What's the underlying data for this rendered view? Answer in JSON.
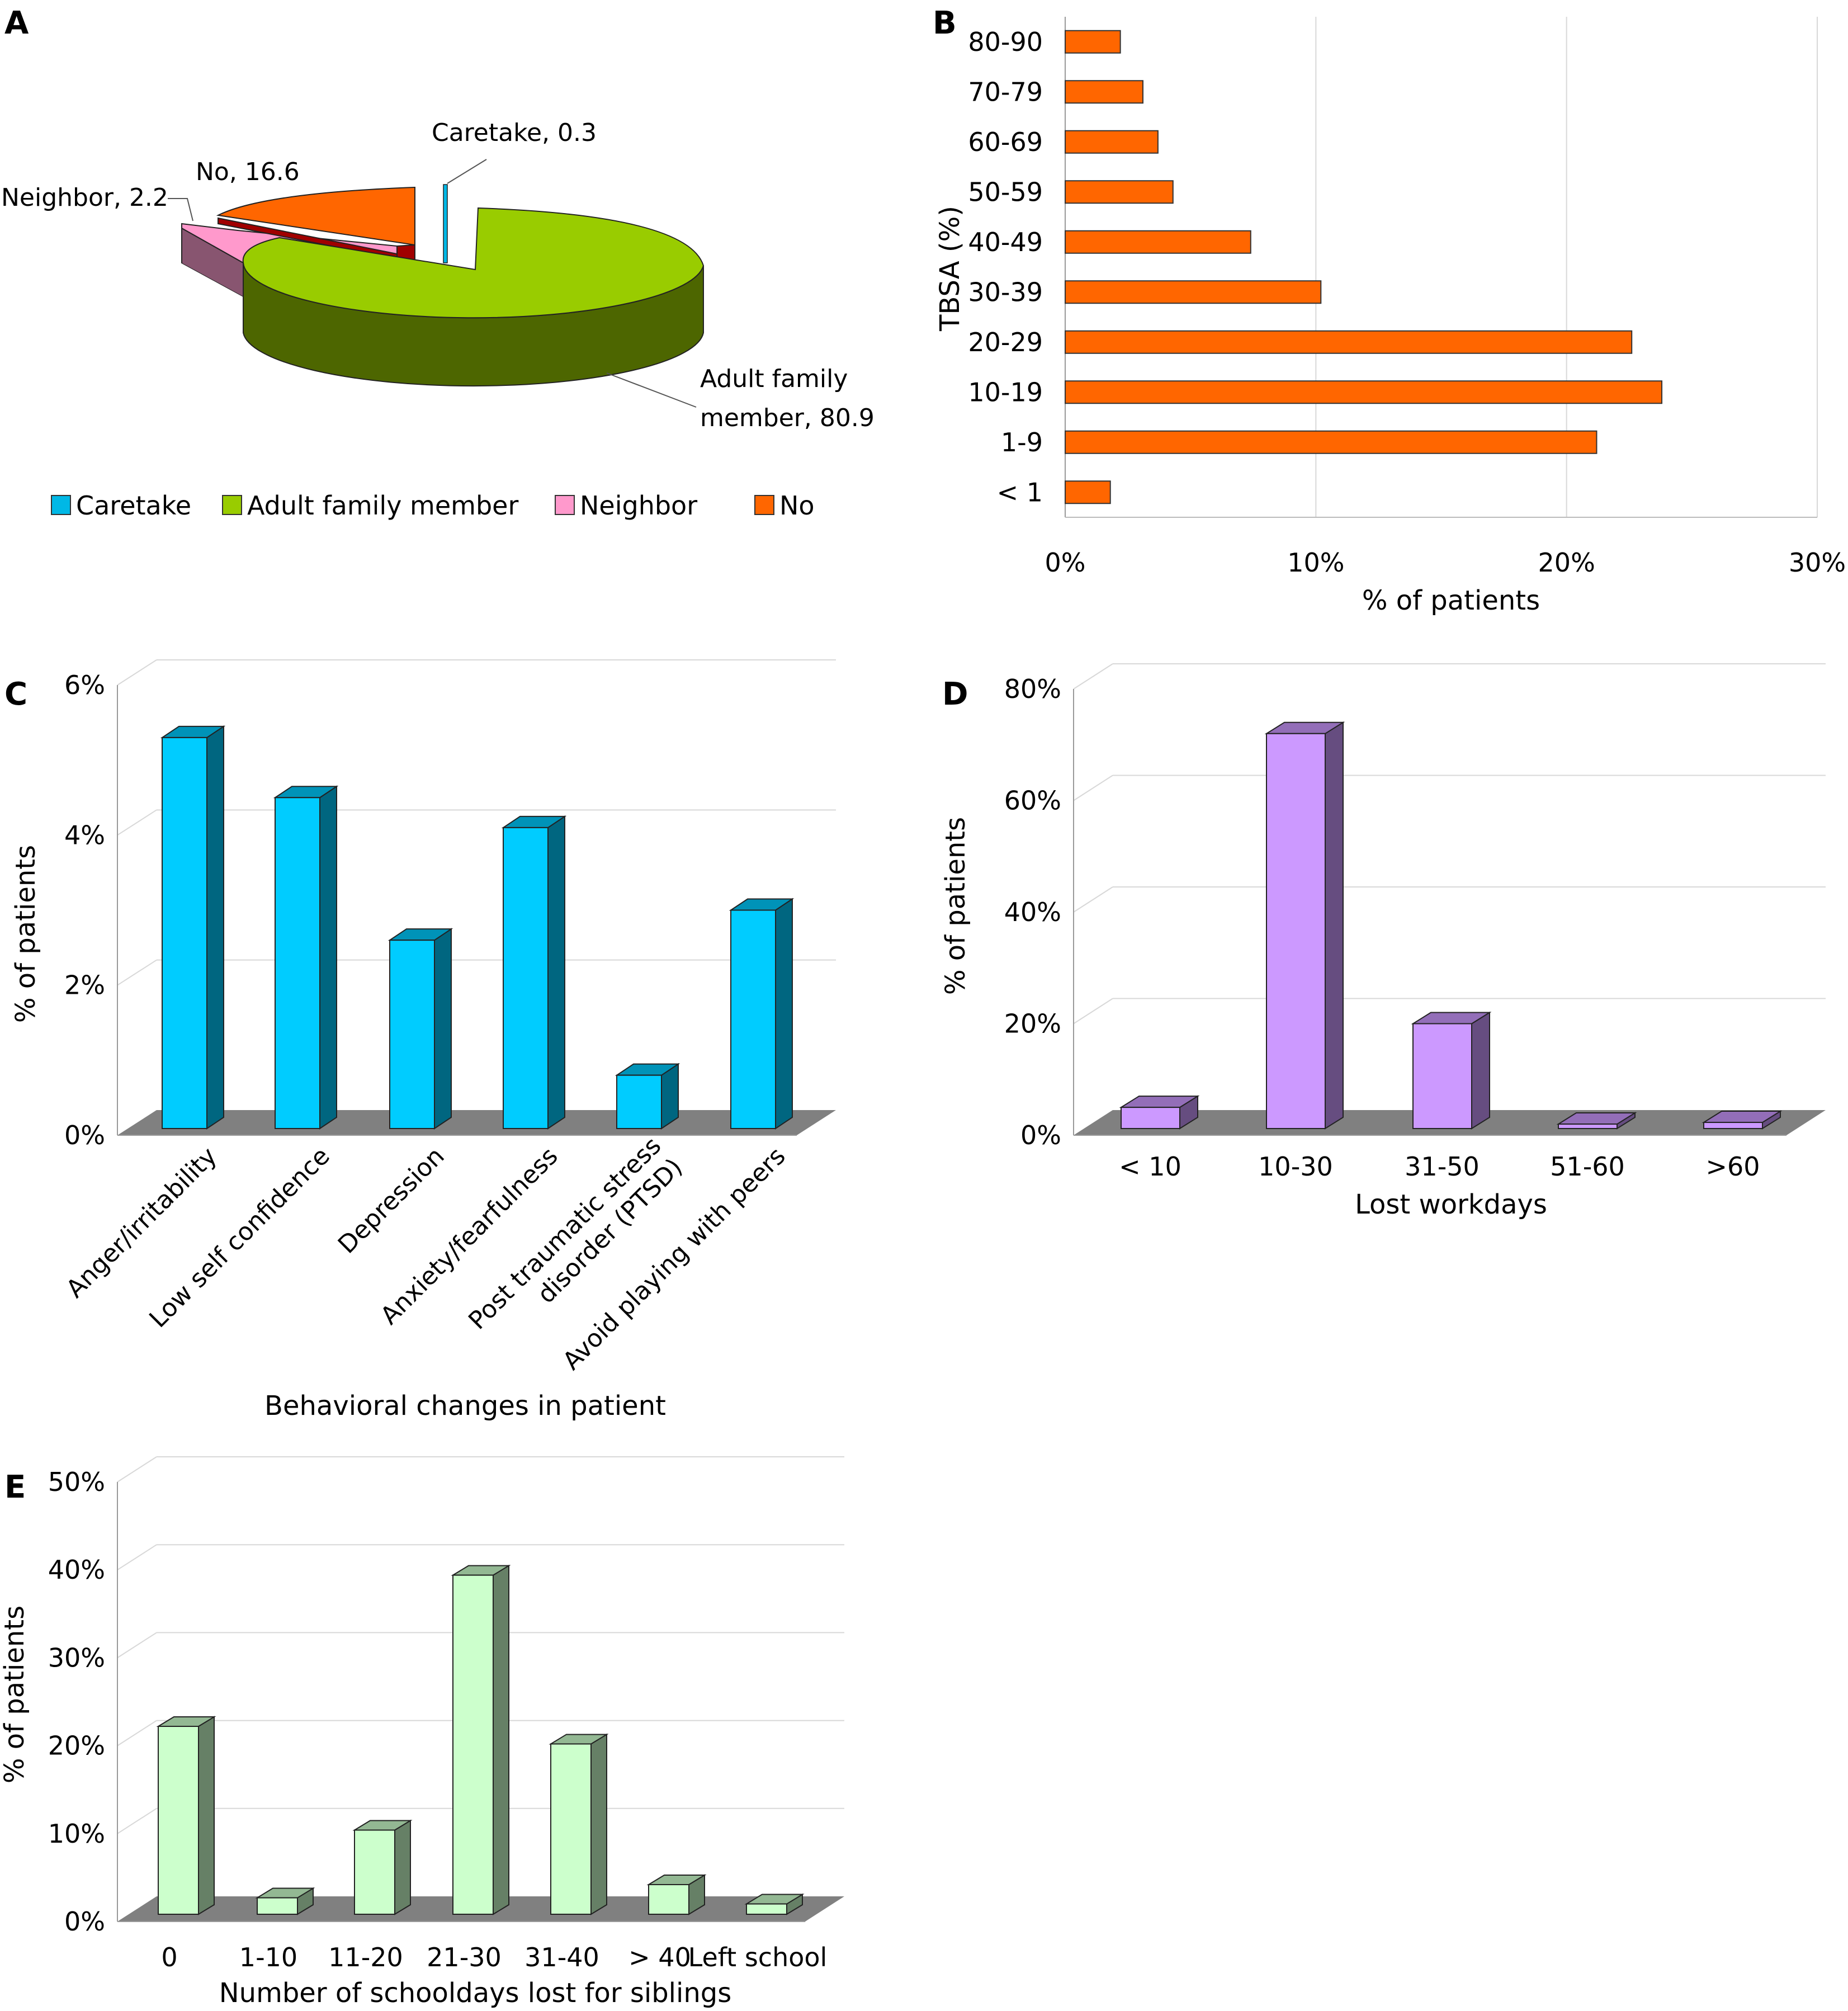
{
  "chart_data": [
    {
      "panel": "A",
      "type": "pie",
      "title": "",
      "slices": [
        {
          "label": "Caretake",
          "value": 0.3,
          "data_label": "Caretake, 0.3",
          "color": "#00b8e6",
          "side": "#0088aa"
        },
        {
          "label": "Adult family member",
          "value": 80.9,
          "data_label": "Adult family member, 80.9",
          "color": "#99cc00",
          "side": "#4d6600"
        },
        {
          "label": "Neighbor",
          "value": 2.2,
          "data_label": "Neighbor, 2.2",
          "color": "#ff99cc",
          "side": "#885570"
        },
        {
          "label": "No",
          "value": 16.6,
          "data_label": "No, 16.6",
          "color": "#ff6600",
          "side": "#a00000"
        }
      ],
      "legend": [
        "Caretake",
        "Adult family member",
        "Neighbor",
        "No"
      ],
      "legend_position": "bottom"
    },
    {
      "panel": "B",
      "type": "bar",
      "orientation": "horizontal",
      "categories": [
        "< 1",
        "1-9",
        "10-19",
        "20-29",
        "30-39",
        "40-49",
        "50-59",
        "60-69",
        "70-79",
        "80-90"
      ],
      "values": [
        1.8,
        21.2,
        23.8,
        22.6,
        10.2,
        7.4,
        4.3,
        3.7,
        3.1,
        2.2
      ],
      "xlabel": "% of patients",
      "ylabel": "TBSA (%)",
      "xlim": [
        0,
        30
      ],
      "xticks": [
        "0%",
        "10%",
        "20%",
        "30%"
      ],
      "grid": true,
      "color": "#ff6600"
    },
    {
      "panel": "C",
      "type": "bar",
      "categories": [
        "Anger/irritability",
        "Low self confidence",
        "Depression",
        "Anxiety/fearfulness",
        "Post traumatic stress disorder (PTSD)",
        "Avoid playing with peers"
      ],
      "category_lines": [
        [
          "Anger/irritability"
        ],
        [
          "Low self confidence"
        ],
        [
          "Depression"
        ],
        [
          "Anxiety/fearfulness"
        ],
        [
          "Post traumatic stress",
          "disorder (PTSD)"
        ],
        [
          "Avoid playing with peers"
        ]
      ],
      "values": [
        5.3,
        4.5,
        2.6,
        4.1,
        0.8,
        3.0
      ],
      "xlabel": "Behavioral changes in patient",
      "ylabel": "% of patients",
      "ylim": [
        0,
        6
      ],
      "yticks": [
        "0%",
        "2%",
        "4%",
        "6%"
      ],
      "grid": true,
      "color": "#00ccff"
    },
    {
      "panel": "D",
      "type": "bar",
      "categories": [
        "< 10",
        "10-30",
        "31-50",
        "51-60",
        ">60"
      ],
      "values": [
        5,
        72,
        20,
        2,
        2.3
      ],
      "xlabel": "Lost workdays",
      "ylabel": "% of patients",
      "ylim": [
        0,
        80
      ],
      "yticks": [
        "0%",
        "20%",
        "40%",
        "60%",
        "80%"
      ],
      "grid": true,
      "color": "#cc99ff"
    },
    {
      "panel": "E",
      "type": "bar",
      "categories": [
        "0",
        "1-10",
        "11-20",
        "21-30",
        "31-40",
        "> 40",
        "Left school"
      ],
      "values": [
        22.2,
        2.7,
        10.4,
        39.4,
        20.2,
        4.2,
        2.0
      ],
      "xlabel": "Number of schooldays lost for siblings",
      "ylabel": "% of patients",
      "ylim": [
        0,
        50
      ],
      "yticks": [
        "0%",
        "10%",
        "20%",
        "30%",
        "40%",
        "50%"
      ],
      "grid": true,
      "color": "#ccffcc"
    }
  ]
}
